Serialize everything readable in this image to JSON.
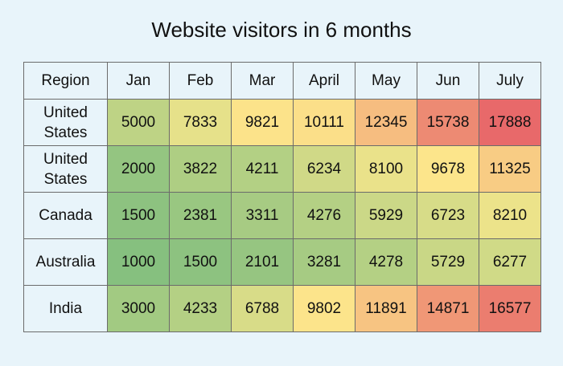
{
  "chart_data": {
    "type": "heatmap",
    "title": "Website visitors in 6 months",
    "header_label": "Region",
    "columns": [
      "Jan",
      "Feb",
      "Mar",
      "April",
      "May",
      "Jun",
      "July"
    ],
    "rows": [
      {
        "label": "United States",
        "values": [
          5000,
          7833,
          9821,
          10111,
          12345,
          15738,
          17888
        ]
      },
      {
        "label": "United States",
        "values": [
          2000,
          3822,
          4211,
          6234,
          8100,
          9678,
          11325
        ]
      },
      {
        "label": "Canada",
        "values": [
          1500,
          2381,
          3311,
          4276,
          5929,
          6723,
          8210
        ]
      },
      {
        "label": "Australia",
        "values": [
          1000,
          1500,
          2101,
          3281,
          4278,
          5729,
          6277
        ]
      },
      {
        "label": "India",
        "values": [
          3000,
          4233,
          6788,
          9802,
          11891,
          14871,
          16577
        ]
      }
    ],
    "color_scale": {
      "low": "#86c07f",
      "mid": "#fde98c",
      "high": "#e8696a"
    }
  }
}
